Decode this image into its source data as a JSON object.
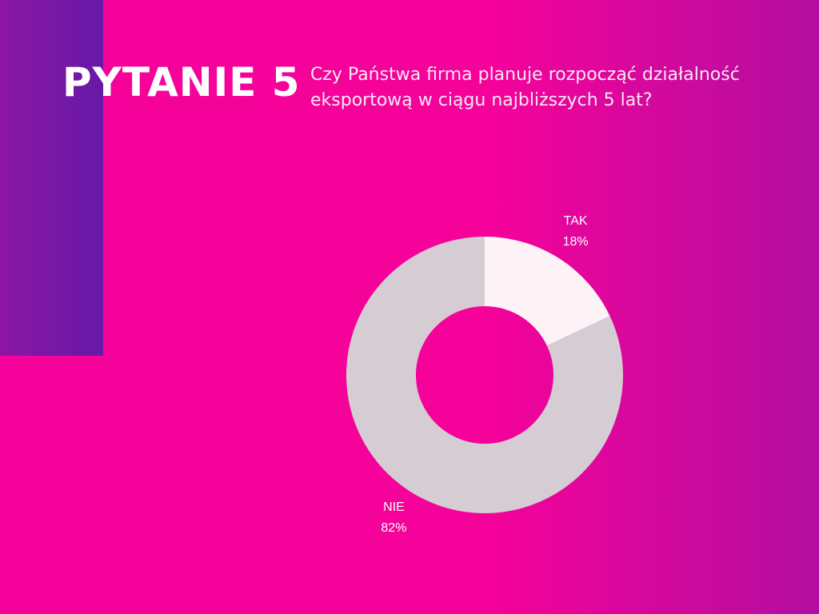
{
  "header": {
    "title": "PYTANIE 5",
    "question": "Czy Państwa firma planuje rozpocząć działalność eksportową w ciągu najbliższych 5 lat?"
  },
  "chart_data": {
    "type": "donut",
    "categories": [
      "TAK",
      "NIE"
    ],
    "values": [
      18,
      82
    ],
    "value_labels": [
      "18%",
      "82%"
    ],
    "colors": [
      "#fdf3f6",
      "#d5cdd3"
    ]
  }
}
